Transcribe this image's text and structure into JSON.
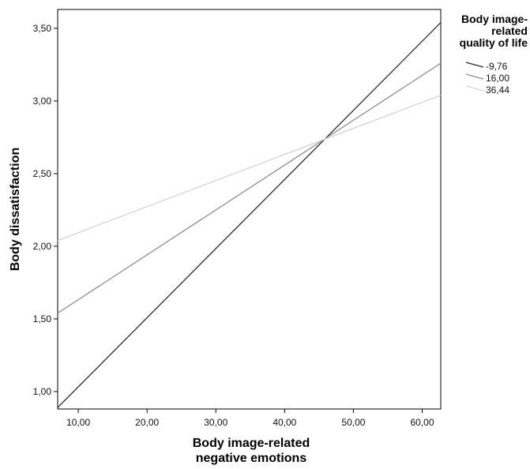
{
  "chart_data": {
    "type": "line",
    "xlabel": [
      "Body image-related",
      "negative emotions"
    ],
    "ylabel": "Body dissatisfaction",
    "xlim": [
      7.0,
      62.7
    ],
    "ylim": [
      0.88,
      3.63
    ],
    "x_ticks": [
      10,
      20,
      30,
      40,
      50,
      60
    ],
    "x_tick_labels": [
      "10,00",
      "20,00",
      "30,00",
      "40,00",
      "50,00",
      "60,00"
    ],
    "y_ticks": [
      1.0,
      1.5,
      2.0,
      2.5,
      3.0,
      3.5
    ],
    "y_tick_labels": [
      "1,00",
      "1,50",
      "2,00",
      "2,50",
      "3,00",
      "3,50"
    ],
    "grid": false,
    "legend": {
      "title": [
        "Body image-",
        "related",
        "quality of life"
      ],
      "placement": "right"
    },
    "series": [
      {
        "name": "-9,76",
        "color": "#2b2b2b",
        "x": [
          7.0,
          62.7
        ],
        "y": [
          0.89,
          3.54
        ]
      },
      {
        "name": "16,00",
        "color": "#8e8e8e",
        "x": [
          7.0,
          62.7
        ],
        "y": [
          1.54,
          3.26
        ]
      },
      {
        "name": "36,44",
        "color": "#d4d4d4",
        "x": [
          7.0,
          62.7
        ],
        "y": [
          2.04,
          3.04
        ]
      }
    ]
  }
}
